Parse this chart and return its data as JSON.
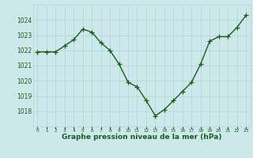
{
  "x": [
    0,
    1,
    2,
    3,
    4,
    5,
    6,
    7,
    8,
    9,
    10,
    11,
    12,
    13,
    14,
    15,
    16,
    17,
    18,
    19,
    20,
    21,
    22,
    23
  ],
  "y": [
    1021.9,
    1021.9,
    1021.9,
    1022.3,
    1022.7,
    1023.4,
    1023.2,
    1022.5,
    1022.0,
    1021.1,
    1019.9,
    1019.6,
    1018.7,
    1017.7,
    1018.1,
    1018.7,
    1019.3,
    1019.9,
    1021.1,
    1022.6,
    1022.9,
    1022.9,
    1023.5,
    1024.3
  ],
  "line_color": "#1a5e1a",
  "marker_color": "#1a5e1a",
  "bg_color": "#cce8ea",
  "grid_color": "#b0d4d8",
  "tick_color": "#1a5e1a",
  "label_color": "#1a5e1a",
  "xlabel": "Graphe pression niveau de la mer (hPa)",
  "ylim": [
    1017.0,
    1025.0
  ],
  "yticks": [
    1018,
    1019,
    1020,
    1021,
    1022,
    1023,
    1024
  ],
  "xticks": [
    0,
    1,
    2,
    3,
    4,
    5,
    6,
    7,
    8,
    9,
    10,
    11,
    12,
    13,
    14,
    15,
    16,
    17,
    18,
    19,
    20,
    21,
    22,
    23
  ],
  "marker_size": 4.0,
  "line_width": 1.0
}
